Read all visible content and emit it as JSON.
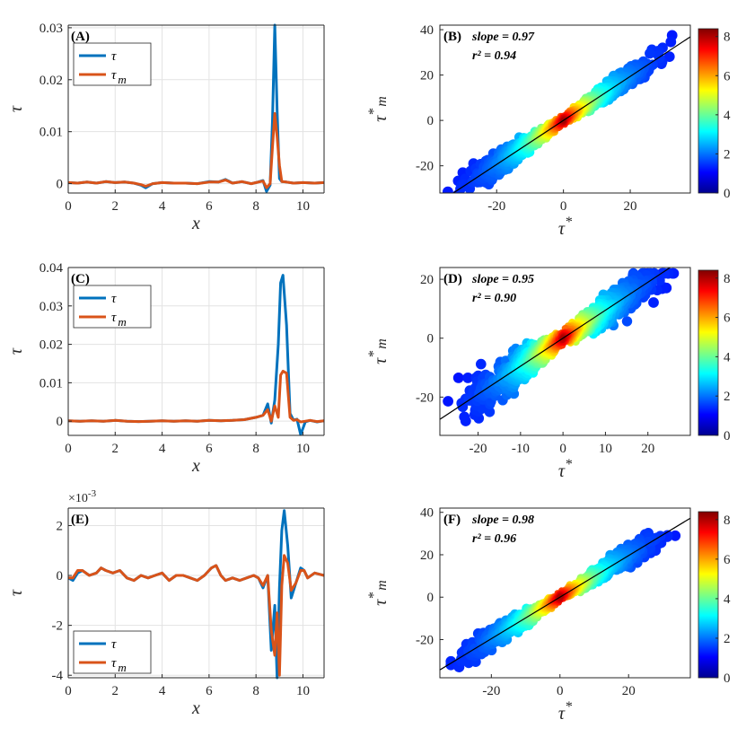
{
  "chart_data": [
    {
      "panel": "(A)",
      "type": "line",
      "xlabel": "x",
      "ylabel": "τ",
      "xlim": [
        0,
        10.9
      ],
      "ylim": [
        -0.0018,
        0.0305
      ],
      "xticks": [
        0,
        2,
        4,
        6,
        8,
        10
      ],
      "yticks": [
        0,
        0.01,
        0.02,
        0.03
      ],
      "ytick_labels": [
        "0",
        "0.01",
        "0.02",
        "0.03"
      ],
      "grid": true,
      "legend": [
        "τ",
        "τ m"
      ],
      "series": [
        {
          "name": "τ",
          "color": "#0072BD",
          "x": [
            0,
            0.4,
            0.8,
            1.2,
            1.6,
            2.0,
            2.4,
            2.8,
            3.1,
            3.3,
            3.6,
            4.0,
            4.5,
            5.0,
            5.5,
            6.0,
            6.4,
            6.7,
            7.0,
            7.4,
            7.8,
            8.0,
            8.3,
            8.45,
            8.6,
            8.7,
            8.8,
            8.9,
            9.0,
            9.1,
            9.3,
            9.6,
            10,
            10.5,
            10.9
          ],
          "y": [
            0.0002,
            0.0001,
            0.0003,
            0.0001,
            0.0004,
            0.0002,
            0.0003,
            0.0001,
            -0.0003,
            -0.0008,
            0.0,
            0.0002,
            0.0001,
            0.0001,
            0.0,
            0.0004,
            0.0003,
            0.0008,
            0.0001,
            0.0004,
            0.0,
            0.0002,
            0.0006,
            -0.0015,
            -0.0003,
            0.012,
            0.0305,
            0.014,
            0.001,
            0.0004,
            0.0003,
            0.0001,
            0.0002,
            0.0001,
            0.0002
          ]
        },
        {
          "name": "τ m",
          "color": "#D95319",
          "x": [
            0,
            0.4,
            0.8,
            1.2,
            1.6,
            2.0,
            2.4,
            2.8,
            3.1,
            3.3,
            3.6,
            4.0,
            4.5,
            5.0,
            5.5,
            6.0,
            6.4,
            6.7,
            7.0,
            7.4,
            7.8,
            8.0,
            8.3,
            8.45,
            8.6,
            8.7,
            8.8,
            8.9,
            9.0,
            9.1,
            9.3,
            9.6,
            10,
            10.5,
            10.9
          ],
          "y": [
            0.0002,
            0.0001,
            0.0003,
            0.0001,
            0.0004,
            0.0002,
            0.0003,
            0.0001,
            -0.0002,
            -0.0005,
            0.0,
            0.0002,
            0.0001,
            0.0001,
            0.0,
            0.0003,
            0.0003,
            0.0007,
            0.0001,
            0.0004,
            0.0,
            0.0002,
            0.0005,
            -0.0008,
            0.0,
            0.007,
            0.0135,
            0.009,
            0.0035,
            0.0004,
            0.0003,
            0.0001,
            0.0002,
            0.0001,
            0.0002
          ]
        }
      ]
    },
    {
      "panel": "(B)",
      "type": "scatter",
      "subtype": "density",
      "xlabel": "τ*",
      "ylabel": "τ* m",
      "xlim": [
        -37,
        38
      ],
      "ylim": [
        -32,
        42
      ],
      "xticks": [
        -20,
        0,
        20
      ],
      "yticks": [
        -20,
        0,
        20,
        40
      ],
      "annotations": [
        "slope = 0.97",
        "r² = 0.94"
      ],
      "fit": {
        "slope": 0.97,
        "r2": 0.94
      },
      "colorbar": {
        "ticks": [
          0,
          2,
          4,
          6,
          8
        ],
        "range": [
          0,
          8.4
        ]
      }
    },
    {
      "panel": "(C)",
      "type": "line",
      "xlabel": "x",
      "ylabel": "τ",
      "xlim": [
        0,
        10.9
      ],
      "ylim": [
        -0.0037,
        0.04
      ],
      "xticks": [
        0,
        2,
        4,
        6,
        8,
        10
      ],
      "yticks": [
        0,
        0.01,
        0.02,
        0.03,
        0.04
      ],
      "ytick_labels": [
        "0",
        "0.01",
        "0.02",
        "0.03",
        "0.04"
      ],
      "grid": true,
      "legend": [
        "τ",
        "τ m"
      ],
      "series": [
        {
          "name": "τ",
          "color": "#0072BD",
          "x": [
            0,
            0.5,
            1,
            1.5,
            2,
            2.5,
            3,
            3.5,
            4,
            4.5,
            5,
            5.5,
            6,
            6.5,
            7,
            7.5,
            8,
            8.3,
            8.5,
            8.65,
            8.8,
            8.95,
            9.05,
            9.15,
            9.3,
            9.45,
            9.6,
            9.75,
            9.9,
            10.1,
            10.3,
            10.6,
            10.9
          ],
          "y": [
            0.0001,
            0.0,
            0.0001,
            0.0,
            0.0002,
            0.0,
            -0.0001,
            0.0,
            0.0001,
            0.0,
            0.0001,
            0.0,
            0.0002,
            0.0001,
            0.0002,
            0.0004,
            0.001,
            0.0015,
            0.0045,
            -0.0005,
            0.0055,
            0.02,
            0.036,
            0.038,
            0.025,
            0.002,
            0.0003,
            0.0005,
            -0.0035,
            -0.0002,
            0.0002,
            -0.0002,
            0.0001
          ]
        },
        {
          "name": "τ m",
          "color": "#D95319",
          "x": [
            0,
            0.5,
            1,
            1.5,
            2,
            2.5,
            3,
            3.5,
            4,
            4.5,
            5,
            5.5,
            6,
            6.5,
            7,
            7.5,
            8,
            8.3,
            8.5,
            8.65,
            8.8,
            8.95,
            9.05,
            9.15,
            9.3,
            9.45,
            9.6,
            9.75,
            9.9,
            10.1,
            10.3,
            10.6,
            10.9
          ],
          "y": [
            0.0001,
            0.0,
            0.0001,
            0.0,
            0.0002,
            0.0,
            -0.0001,
            0.0,
            0.0001,
            0.0,
            0.0001,
            0.0,
            0.0002,
            0.0001,
            0.0002,
            0.0004,
            0.001,
            0.0015,
            0.003,
            0.0,
            0.004,
            0.001,
            0.012,
            0.013,
            0.0125,
            0.001,
            0.0002,
            0.0004,
            -0.0002,
            0.0,
            0.0002,
            -0.0001,
            0.0001
          ]
        }
      ]
    },
    {
      "panel": "(D)",
      "type": "scatter",
      "subtype": "density",
      "xlabel": "τ*",
      "ylabel": "τ* m",
      "xlim": [
        -29,
        30
      ],
      "ylim": [
        -33,
        24
      ],
      "xticks": [
        -20,
        -10,
        0,
        10,
        20
      ],
      "yticks": [
        -20,
        0,
        20
      ],
      "annotations": [
        "slope = 0.95",
        "r² = 0.90"
      ],
      "fit": {
        "slope": 0.95,
        "r2": 0.9
      },
      "colorbar": {
        "ticks": [
          0,
          2,
          4,
          6,
          8
        ],
        "range": [
          0,
          8.4
        ]
      }
    },
    {
      "panel": "(E)",
      "type": "line",
      "xlabel": "x",
      "ylabel": "τ",
      "y_exponent_label": "×10",
      "y_exponent": "-3",
      "xlim": [
        0,
        10.9
      ],
      "ylim": [
        -0.0041,
        0.0027
      ],
      "xticks": [
        0,
        2,
        4,
        6,
        8,
        10
      ],
      "yticks": [
        -0.004,
        -0.002,
        0,
        0.002
      ],
      "ytick_labels": [
        "-4",
        "-2",
        "0",
        "2"
      ],
      "grid": true,
      "legend": [
        "τ",
        "τ m"
      ],
      "series": [
        {
          "name": "τ",
          "color": "#0072BD",
          "x": [
            0,
            0.2,
            0.4,
            0.6,
            0.9,
            1.2,
            1.4,
            1.6,
            1.9,
            2.2,
            2.5,
            2.8,
            3.1,
            3.4,
            3.7,
            4.0,
            4.3,
            4.6,
            4.9,
            5.2,
            5.5,
            5.8,
            6.1,
            6.3,
            6.5,
            6.7,
            7.0,
            7.3,
            7.6,
            7.9,
            8.1,
            8.3,
            8.5,
            8.65,
            8.8,
            8.9,
            9.0,
            9.1,
            9.2,
            9.35,
            9.5,
            9.7,
            9.9,
            10.05,
            10.2,
            10.5,
            10.9
          ],
          "y": [
            -0.0001,
            -0.0002,
            0.0001,
            0.0002,
            0.0,
            0.0001,
            0.0003,
            0.0002,
            0.0001,
            0.0002,
            -0.0001,
            -0.0002,
            0.0,
            -0.0001,
            0.0,
            0.0001,
            -0.0002,
            0.0,
            0.0,
            -0.0001,
            -0.0002,
            0.0,
            0.0003,
            0.0004,
            0.0,
            -0.0002,
            -0.0001,
            -0.0002,
            -0.0001,
            0.0,
            -0.0001,
            -0.0005,
            0.0,
            -0.003,
            -0.0012,
            -0.0041,
            -0.0005,
            0.0018,
            0.0026,
            0.0012,
            -0.0009,
            -0.0003,
            0.0003,
            0.0002,
            -0.0001,
            0.0001,
            0.0
          ]
        },
        {
          "name": "τ m",
          "color": "#D95319",
          "x": [
            0,
            0.2,
            0.4,
            0.6,
            0.9,
            1.2,
            1.4,
            1.6,
            1.9,
            2.2,
            2.5,
            2.8,
            3.1,
            3.4,
            3.7,
            4.0,
            4.3,
            4.6,
            4.9,
            5.2,
            5.5,
            5.8,
            6.1,
            6.3,
            6.5,
            6.7,
            7.0,
            7.3,
            7.6,
            7.9,
            8.1,
            8.3,
            8.5,
            8.65,
            8.8,
            8.9,
            9.0,
            9.1,
            9.2,
            9.35,
            9.5,
            9.7,
            9.9,
            10.05,
            10.2,
            10.5,
            10.9
          ],
          "y": [
            -0.0001,
            -0.0001,
            0.0002,
            0.0002,
            0.0,
            0.0001,
            0.0003,
            0.0002,
            0.0001,
            0.0002,
            -0.0001,
            -0.0002,
            0.0,
            -0.0001,
            0.0,
            0.0001,
            -0.0002,
            0.0,
            0.0,
            -0.0001,
            -0.0002,
            0.0,
            0.0003,
            0.0004,
            0.0,
            -0.0002,
            -0.0001,
            -0.0002,
            -0.0001,
            0.0,
            -0.0001,
            -0.0004,
            0.0,
            -0.0022,
            -0.0032,
            -0.0015,
            -0.004,
            -0.0004,
            0.0008,
            0.0005,
            -0.0006,
            -0.0003,
            0.0002,
            0.0002,
            -0.0001,
            0.0001,
            0.0
          ]
        }
      ]
    },
    {
      "panel": "(F)",
      "type": "scatter",
      "subtype": "density",
      "xlabel": "τ*",
      "ylabel": "τ* m",
      "xlim": [
        -35,
        38
      ],
      "ylim": [
        -38,
        42
      ],
      "xticks": [
        -20,
        0,
        20
      ],
      "yticks": [
        -20,
        0,
        20,
        40
      ],
      "annotations": [
        "slope = 0.98",
        "r² = 0.96"
      ],
      "fit": {
        "slope": 0.98,
        "r2": 0.96
      },
      "colorbar": {
        "ticks": [
          0,
          2,
          4,
          6,
          8
        ],
        "range": [
          0,
          8.4
        ]
      }
    }
  ]
}
